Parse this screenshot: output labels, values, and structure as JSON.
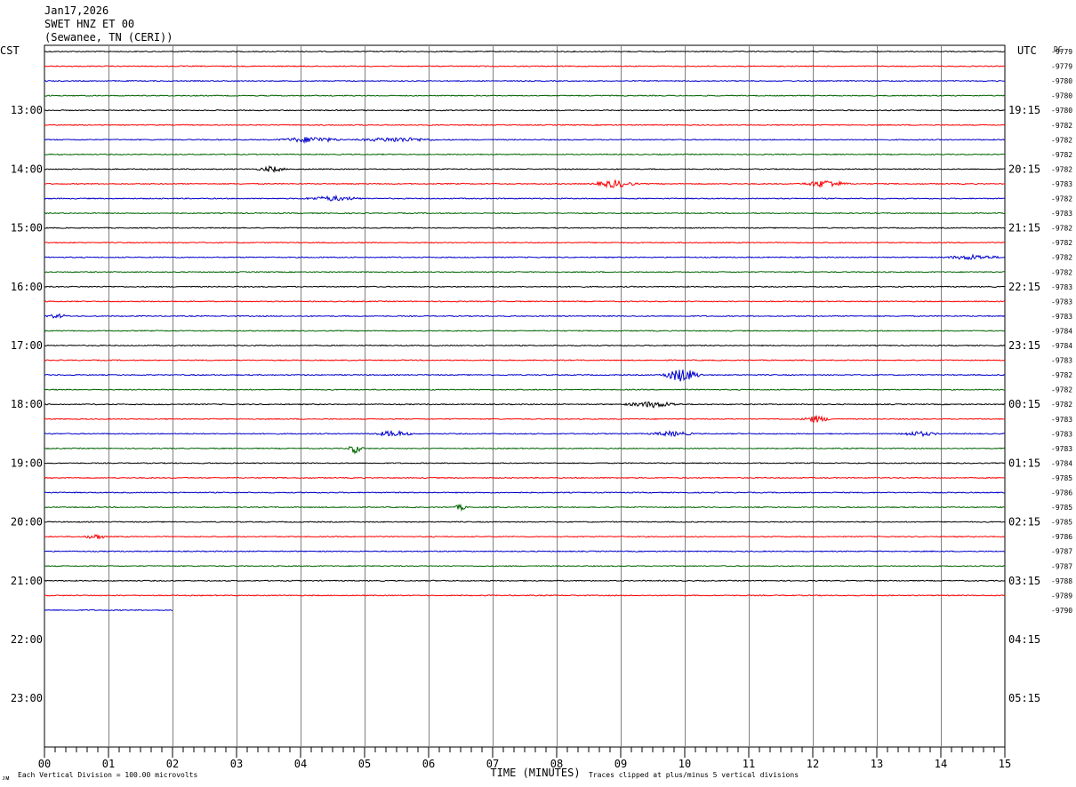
{
  "header": {
    "date": "Jan17,2026",
    "station": "SWET HNZ ET 00",
    "location": "(Sewanee, TN (CERI))"
  },
  "labels": {
    "left_tz": "CST",
    "right_tz": "UTC",
    "dc": "DC"
  },
  "footer": {
    "x_axis_title": "TIME (MINUTES)",
    "scale_note": "Each Vertical Division =  100.00 microvolts",
    "clip_note": "Traces clipped at plus/minus 5 vertical divisions",
    "corner_mark": "ᴊᴍ"
  },
  "colors": {
    "trace_cycle": [
      "#000000",
      "#ff0000",
      "#0000cc",
      "#006400"
    ],
    "grid": "#808080"
  },
  "chart_data": {
    "type": "line",
    "title": "SWET HNZ ET 00",
    "xlabel": "TIME (MINUTES)",
    "ylabel": "",
    "xlim": [
      0,
      15
    ],
    "x_ticks": [
      "00",
      "01",
      "02",
      "03",
      "04",
      "05",
      "06",
      "07",
      "08",
      "09",
      "10",
      "11",
      "12",
      "13",
      "14",
      "15"
    ],
    "rows_per_hour": 4,
    "left_hour_labels": [
      "13:00",
      "14:00",
      "15:00",
      "16:00",
      "17:00",
      "18:00",
      "19:00",
      "20:00",
      "21:00",
      "22:00",
      "23:00"
    ],
    "right_hour_labels": [
      "19:15",
      "20:15",
      "21:15",
      "22:15",
      "23:15",
      "00:15",
      "01:15",
      "02:15",
      "03:15",
      "04:15",
      "05:15"
    ],
    "dc_offsets": [
      "-9779",
      "-9779",
      "-9780",
      "-9780",
      "-9780",
      "-9782",
      "-9782",
      "-9782",
      "-9782",
      "-9783",
      "-9782",
      "-9783",
      "-9782",
      "-9782",
      "-9782",
      "-9782",
      "-9783",
      "-9783",
      "-9783",
      "-9784",
      "-9784",
      "-9783",
      "-9782",
      "-9782",
      "-9782",
      "-9783",
      "-9783",
      "-9783",
      "-9784",
      "-9785",
      "-9786",
      "-9785",
      "-9785",
      "-9786",
      "-9787",
      "-9787",
      "-9788",
      "-9789",
      "-9790"
    ],
    "row_end_minutes": [
      15,
      15,
      15,
      15,
      15,
      15,
      15,
      15,
      15,
      15,
      15,
      15,
      15,
      15,
      15,
      15,
      15,
      15,
      15,
      15,
      15,
      15,
      15,
      15,
      15,
      15,
      15,
      15,
      15,
      15,
      15,
      15,
      15,
      15,
      15,
      15,
      15,
      15,
      2
    ],
    "events": [
      {
        "row": 6,
        "start": 3.6,
        "end": 4.7,
        "amp": 1.0
      },
      {
        "row": 6,
        "start": 4.8,
        "end": 6.2,
        "amp": 0.8
      },
      {
        "row": 8,
        "start": 3.3,
        "end": 3.8,
        "amp": 1.0
      },
      {
        "row": 9,
        "start": 8.5,
        "end": 9.3,
        "amp": 1.3
      },
      {
        "row": 9,
        "start": 11.8,
        "end": 12.6,
        "amp": 1.3
      },
      {
        "row": 10,
        "start": 4.0,
        "end": 5.0,
        "amp": 0.8
      },
      {
        "row": 22,
        "start": 9.6,
        "end": 10.3,
        "amp": 2.4
      },
      {
        "row": 24,
        "start": 9.0,
        "end": 10.0,
        "amp": 1.0
      },
      {
        "row": 25,
        "start": 11.8,
        "end": 12.3,
        "amp": 1.2
      },
      {
        "row": 26,
        "start": 5.1,
        "end": 5.8,
        "amp": 1.0
      },
      {
        "row": 26,
        "start": 9.4,
        "end": 10.2,
        "amp": 0.8
      },
      {
        "row": 26,
        "start": 13.3,
        "end": 14.0,
        "amp": 0.8
      },
      {
        "row": 27,
        "start": 4.7,
        "end": 5.0,
        "amp": 1.6
      },
      {
        "row": 18,
        "start": 0.0,
        "end": 0.4,
        "amp": 0.7
      },
      {
        "row": 31,
        "start": 6.4,
        "end": 6.6,
        "amp": 1.2
      },
      {
        "row": 33,
        "start": 0.6,
        "end": 1.0,
        "amp": 0.9
      },
      {
        "row": 14,
        "start": 14.0,
        "end": 15.0,
        "amp": 0.8
      }
    ]
  }
}
